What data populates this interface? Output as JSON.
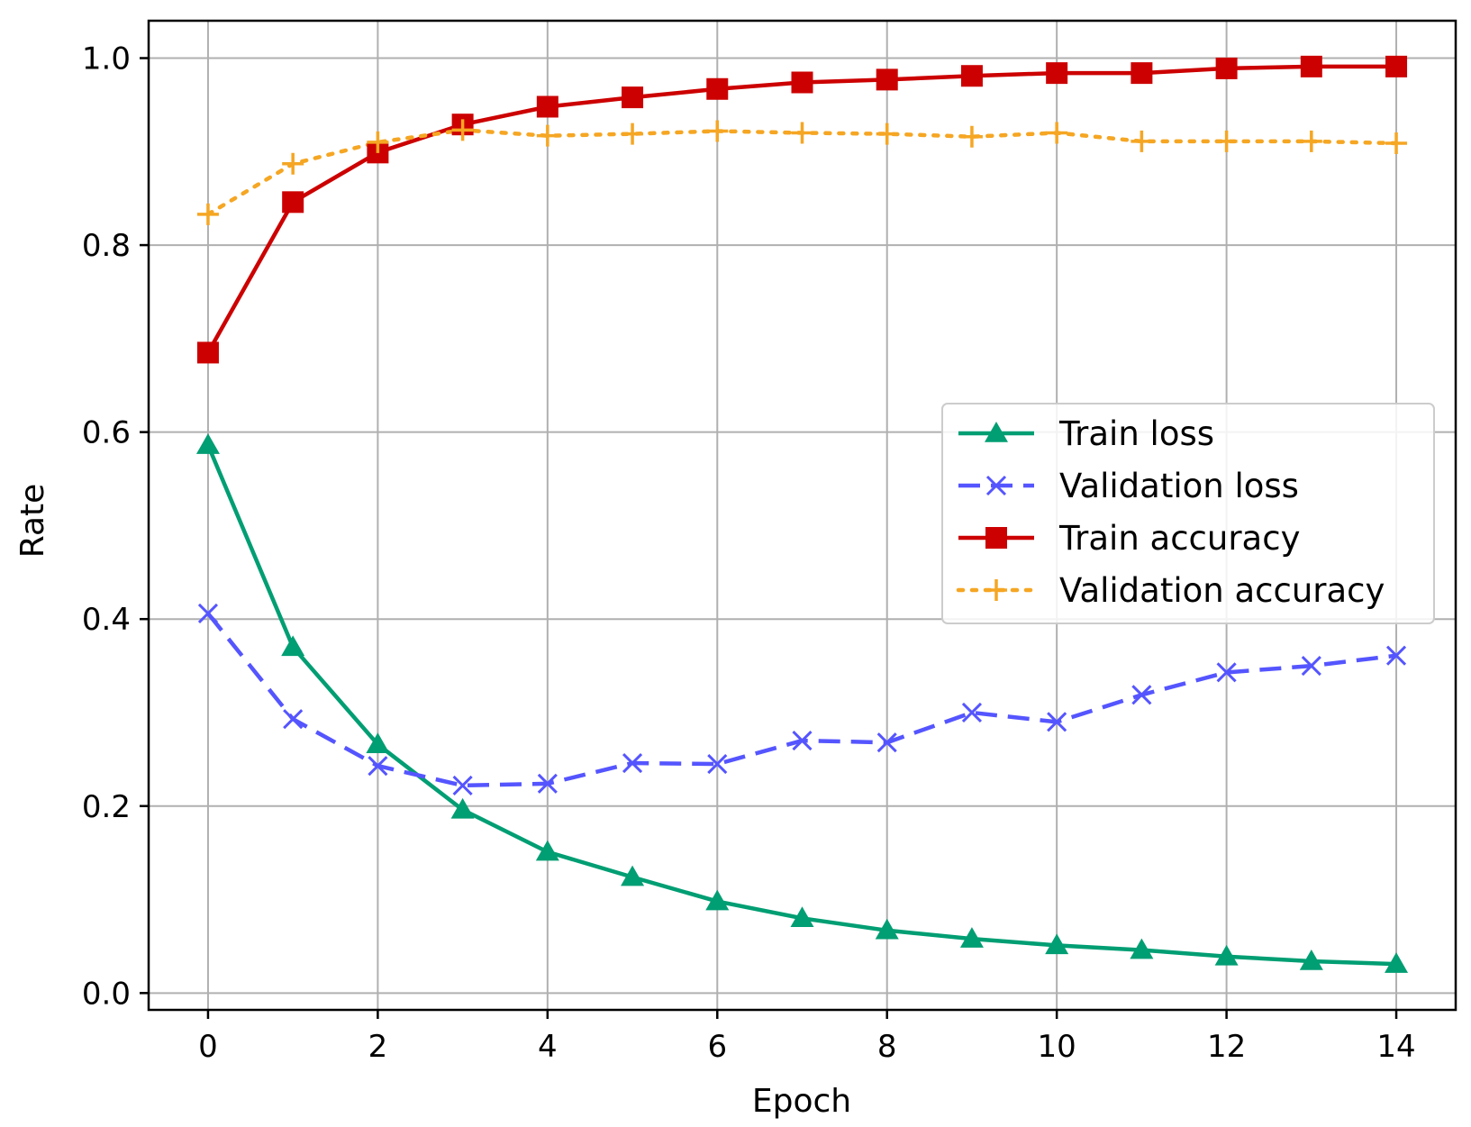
{
  "chart_data": {
    "type": "line",
    "title": "",
    "xlabel": "Epoch",
    "ylabel": "Rate",
    "xlim": [
      -0.7,
      14.7
    ],
    "ylim": [
      -0.018,
      1.04
    ],
    "xticks": [
      0,
      2,
      4,
      6,
      8,
      10,
      12,
      14
    ],
    "xtick_labels": [
      "0",
      "2",
      "4",
      "6",
      "8",
      "10",
      "12",
      "14"
    ],
    "yticks": [
      0.0,
      0.2,
      0.4,
      0.6,
      0.8,
      1.0
    ],
    "ytick_labels": [
      "0.0",
      "0.2",
      "0.4",
      "0.6",
      "0.8",
      "1.0"
    ],
    "grid": true,
    "legend_position": "center-right",
    "x": [
      0,
      1,
      2,
      3,
      4,
      5,
      6,
      7,
      8,
      9,
      10,
      11,
      12,
      13,
      14
    ],
    "series": [
      {
        "name": "Train loss",
        "color": "#009e73",
        "line_style": "solid",
        "marker": "triangle",
        "values": [
          0.586,
          0.37,
          0.266,
          0.196,
          0.151,
          0.124,
          0.098,
          0.08,
          0.067,
          0.058,
          0.051,
          0.046,
          0.039,
          0.034,
          0.031
        ]
      },
      {
        "name": "Validation loss",
        "color": "#5555ff",
        "line_style": "dashed",
        "marker": "x",
        "values": [
          0.406,
          0.293,
          0.243,
          0.222,
          0.224,
          0.246,
          0.245,
          0.27,
          0.268,
          0.3,
          0.29,
          0.319,
          0.343,
          0.35,
          0.361
        ]
      },
      {
        "name": "Train accuracy",
        "color": "#cc0000",
        "line_style": "solid",
        "marker": "square",
        "values": [
          0.685,
          0.846,
          0.899,
          0.929,
          0.948,
          0.958,
          0.967,
          0.974,
          0.977,
          0.981,
          0.984,
          0.984,
          0.989,
          0.991,
          0.991
        ]
      },
      {
        "name": "Validation accuracy",
        "color": "#f5a623",
        "line_style": "dotted",
        "marker": "plus",
        "values": [
          0.833,
          0.887,
          0.91,
          0.923,
          0.917,
          0.919,
          0.922,
          0.92,
          0.919,
          0.916,
          0.92,
          0.911,
          0.911,
          0.911,
          0.909
        ]
      }
    ]
  }
}
